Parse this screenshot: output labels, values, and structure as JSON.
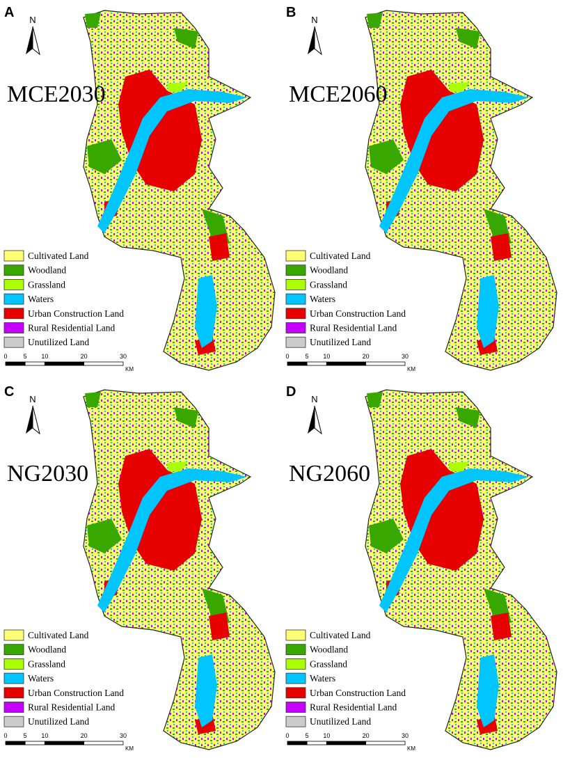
{
  "panels": [
    {
      "letter": "A",
      "title": "MCE2030"
    },
    {
      "letter": "B",
      "title": "MCE2060"
    },
    {
      "letter": "C",
      "title": "NG2030"
    },
    {
      "letter": "D",
      "title": "NG2060"
    }
  ],
  "north": "N",
  "legend": [
    {
      "label": "Cultivated Land",
      "color": "#ffff73"
    },
    {
      "label": "Woodland",
      "color": "#38a800"
    },
    {
      "label": "Grassland",
      "color": "#aaff00"
    },
    {
      "label": "Waters",
      "color": "#00c5ff"
    },
    {
      "label": "Urban Construction Land",
      "color": "#e60000"
    },
    {
      "label": "Rural Residential Land",
      "color": "#c500ff"
    },
    {
      "label": "Unutilized Land",
      "color": "#cccccc"
    }
  ],
  "scale_bar": {
    "ticks": [
      0,
      5,
      10,
      20,
      30
    ],
    "unit": "KM"
  }
}
